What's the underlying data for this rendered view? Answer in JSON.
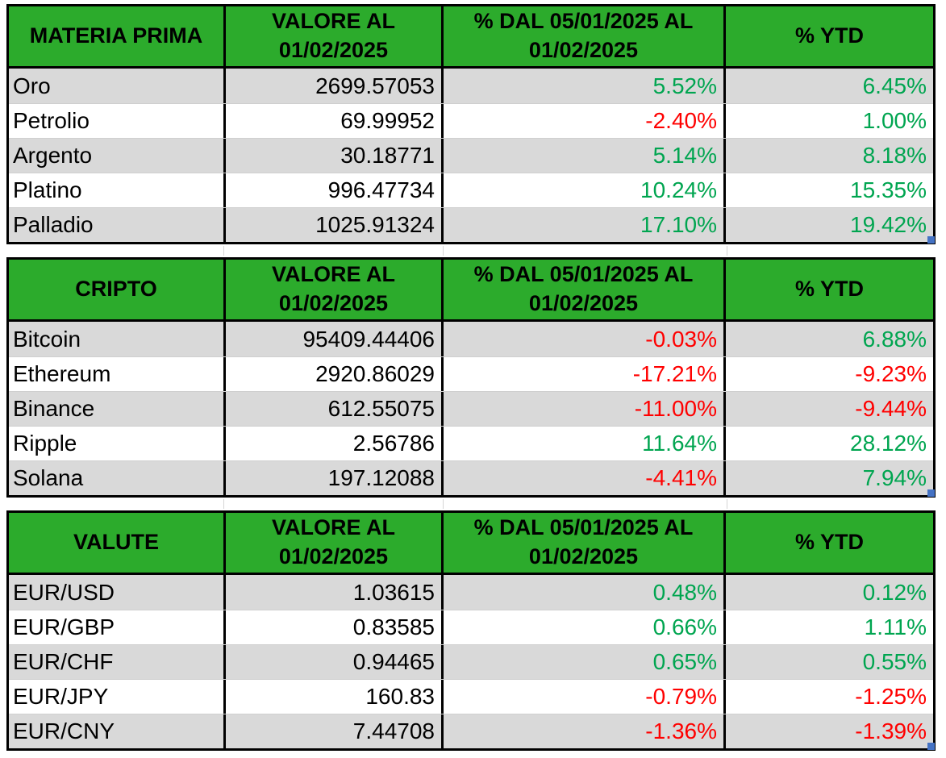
{
  "colors": {
    "header_green": "#2CAB2C",
    "positive_green": "#00A550",
    "negative_red": "#FF0000",
    "stripe_gray": "#D9D9D9",
    "row_white": "#FFFFFF",
    "border_black": "#000000",
    "gridline_gray": "#D6D6D6",
    "table_handle_blue": "#4472C4"
  },
  "tables": [
    {
      "id": "materia-prima",
      "headers": {
        "category": "MATERIA PRIMA",
        "value": "VALORE AL 01/02/2025",
        "pct_period": "% DAL 05/01/2025 AL 01/02/2025",
        "pct_ytd": "% YTD"
      },
      "rows": [
        {
          "name": "Oro",
          "value": "2699.57053",
          "pct_period": "5.52%",
          "pct_ytd": "6.45%"
        },
        {
          "name": "Petrolio",
          "value": "69.99952",
          "pct_period": "-2.40%",
          "pct_ytd": "1.00%"
        },
        {
          "name": "Argento",
          "value": "30.18771",
          "pct_period": "5.14%",
          "pct_ytd": "8.18%"
        },
        {
          "name": "Platino",
          "value": "996.47734",
          "pct_period": "10.24%",
          "pct_ytd": "15.35%"
        },
        {
          "name": "Palladio",
          "value": "1025.91324",
          "pct_period": "17.10%",
          "pct_ytd": "19.42%"
        }
      ]
    },
    {
      "id": "cripto",
      "headers": {
        "category": "CRIPTO",
        "value": "VALORE AL 01/02/2025",
        "pct_period": "% DAL 05/01/2025 AL 01/02/2025",
        "pct_ytd": "% YTD"
      },
      "rows": [
        {
          "name": "Bitcoin",
          "value": "95409.44406",
          "pct_period": "-0.03%",
          "pct_ytd": "6.88%"
        },
        {
          "name": "Ethereum",
          "value": "2920.86029",
          "pct_period": "-17.21%",
          "pct_ytd": "-9.23%"
        },
        {
          "name": "Binance",
          "value": "612.55075",
          "pct_period": "-11.00%",
          "pct_ytd": "-9.44%"
        },
        {
          "name": "Ripple",
          "value": "2.56786",
          "pct_period": "11.64%",
          "pct_ytd": "28.12%"
        },
        {
          "name": "Solana",
          "value": "197.12088",
          "pct_period": "-4.41%",
          "pct_ytd": "7.94%"
        }
      ]
    },
    {
      "id": "valute",
      "headers": {
        "category": "VALUTE",
        "value": "VALORE AL 01/02/2025",
        "pct_period": "% DAL 05/01/2025 AL 01/02/2025",
        "pct_ytd": "% YTD"
      },
      "rows": [
        {
          "name": "EUR/USD",
          "value": "1.03615",
          "pct_period": "0.48%",
          "pct_ytd": "0.12%"
        },
        {
          "name": "EUR/GBP",
          "value": "0.83585",
          "pct_period": "0.66%",
          "pct_ytd": "1.11%"
        },
        {
          "name": "EUR/CHF",
          "value": "0.94465",
          "pct_period": "0.65%",
          "pct_ytd": "0.55%"
        },
        {
          "name": "EUR/JPY",
          "value": "160.83",
          "pct_period": "-0.79%",
          "pct_ytd": "-1.25%"
        },
        {
          "name": "EUR/CNY",
          "value": "7.44708",
          "pct_period": "-1.36%",
          "pct_ytd": "-1.39%"
        }
      ]
    }
  ]
}
